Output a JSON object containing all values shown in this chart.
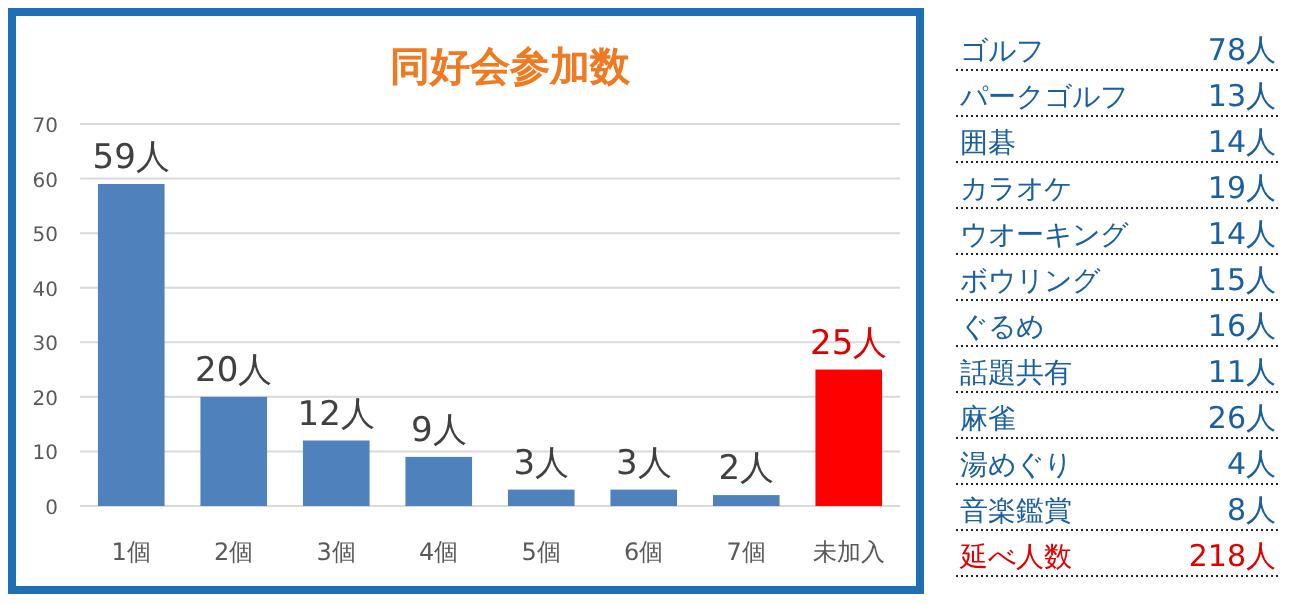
{
  "chart_data": [
    {
      "type": "bar",
      "title": "同好会参加数",
      "categories": [
        "1個",
        "2個",
        "3個",
        "4個",
        "5個",
        "6個",
        "7個",
        "未加入"
      ],
      "values": [
        59,
        20,
        12,
        9,
        3,
        3,
        2,
        25
      ],
      "colors": [
        "#4f81bd",
        "#4f81bd",
        "#4f81bd",
        "#4f81bd",
        "#4f81bd",
        "#4f81bd",
        "#4f81bd",
        "#ff0000"
      ],
      "value_labels": [
        "59人",
        "20人",
        "12人",
        "9人",
        "3人",
        "3人",
        "2人",
        "25人"
      ],
      "ylim": [
        0,
        70
      ],
      "yticks": [
        0,
        10,
        20,
        30,
        40,
        50,
        60,
        70
      ],
      "grid": "y"
    },
    {
      "type": "other",
      "categories": [
        "ゴルフ",
        "パークゴルフ",
        "囲碁",
        "カラオケ",
        "ウオーキング",
        "ボウリング",
        "ぐるめ",
        "話題共有",
        "麻雀",
        "湯めぐり",
        "音楽鑑賞",
        "延べ人数"
      ],
      "annotations": [
        "78人",
        "13人",
        "14人",
        "19人",
        "14人",
        "15人",
        "16人",
        "11人",
        "26人",
        "4人",
        "8人",
        "218人"
      ],
      "colors": [
        "#1a5fa0",
        "#1a5fa0",
        "#1a5fa0",
        "#1a5fa0",
        "#1a5fa0",
        "#1a5fa0",
        "#1a5fa0",
        "#1a5fa0",
        "#1a5fa0",
        "#1a5fa0",
        "#1a5fa0",
        "#e00000"
      ]
    }
  ]
}
